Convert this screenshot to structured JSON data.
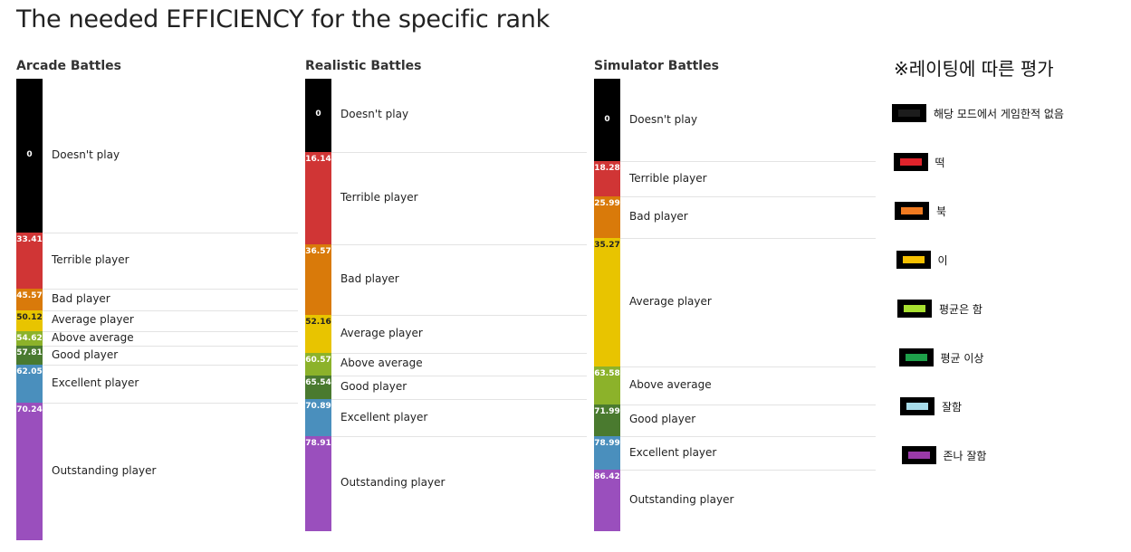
{
  "title": "The needed EFFICIENCY for the specific rank",
  "chart_data": [
    {
      "type": "bar",
      "title": "Arcade Battles",
      "categories": [
        "Doesn't play",
        "Terrible player",
        "Bad player",
        "Average player",
        "Above average",
        "Good player",
        "Excellent player",
        "Outstanding player"
      ],
      "values": [
        0,
        33.41,
        45.57,
        50.12,
        54.62,
        57.81,
        62.05,
        70.24
      ],
      "ylim": [
        0,
        100
      ],
      "colors": [
        "#000000",
        "#d03535",
        "#d97a0a",
        "#e8c400",
        "#8cb22a",
        "#4a7a2f",
        "#4a8fbd",
        "#9a4fbd"
      ],
      "value_text_colors": [
        "#ffffff",
        "#ffffff",
        "#ffffff",
        "#222222",
        "#ffffff",
        "#ffffff",
        "#ffffff",
        "#ffffff"
      ]
    },
    {
      "type": "bar",
      "title": "Realistic Battles",
      "categories": [
        "Doesn't play",
        "Terrible player",
        "Bad player",
        "Average player",
        "Above average",
        "Good player",
        "Excellent player",
        "Outstanding player"
      ],
      "values": [
        0,
        16.14,
        36.57,
        52.16,
        60.57,
        65.54,
        70.89,
        78.91
      ],
      "ylim": [
        0,
        100
      ],
      "colors": [
        "#000000",
        "#d03535",
        "#d97a0a",
        "#e8c400",
        "#8cb22a",
        "#4a7a2f",
        "#4a8fbd",
        "#9a4fbd"
      ],
      "value_text_colors": [
        "#ffffff",
        "#ffffff",
        "#ffffff",
        "#222222",
        "#ffffff",
        "#ffffff",
        "#ffffff",
        "#ffffff"
      ]
    },
    {
      "type": "bar",
      "title": "Simulator Battles",
      "categories": [
        "Doesn't play",
        "Terrible player",
        "Bad player",
        "Average player",
        "Above average",
        "Good player",
        "Excellent player",
        "Outstanding player"
      ],
      "values": [
        0,
        18.28,
        25.99,
        35.27,
        63.58,
        71.99,
        78.99,
        86.42
      ],
      "ylim": [
        0,
        100
      ],
      "colors": [
        "#000000",
        "#d03535",
        "#d97a0a",
        "#e8c400",
        "#8cb22a",
        "#4a7a2f",
        "#4a8fbd",
        "#9a4fbd"
      ],
      "value_text_colors": [
        "#ffffff",
        "#ffffff",
        "#ffffff",
        "#222222",
        "#ffffff",
        "#ffffff",
        "#ffffff",
        "#ffffff"
      ]
    }
  ],
  "legend": {
    "title": "※레이팅에 따른 평가",
    "items": [
      {
        "label": "해당 모드에서 게임한적 없음",
        "color": "#1c1c1c"
      },
      {
        "label": "떡",
        "color": "#e0232b"
      },
      {
        "label": "북",
        "color": "#f07a20"
      },
      {
        "label": "이",
        "color": "#f5c000"
      },
      {
        "label": "평균은 함",
        "color": "#a8e030"
      },
      {
        "label": "평균 이상",
        "color": "#1ea04a"
      },
      {
        "label": "잘함",
        "color": "#a8dcea"
      },
      {
        "label": "존나 잘함",
        "color": "#9a3aa8"
      }
    ]
  }
}
